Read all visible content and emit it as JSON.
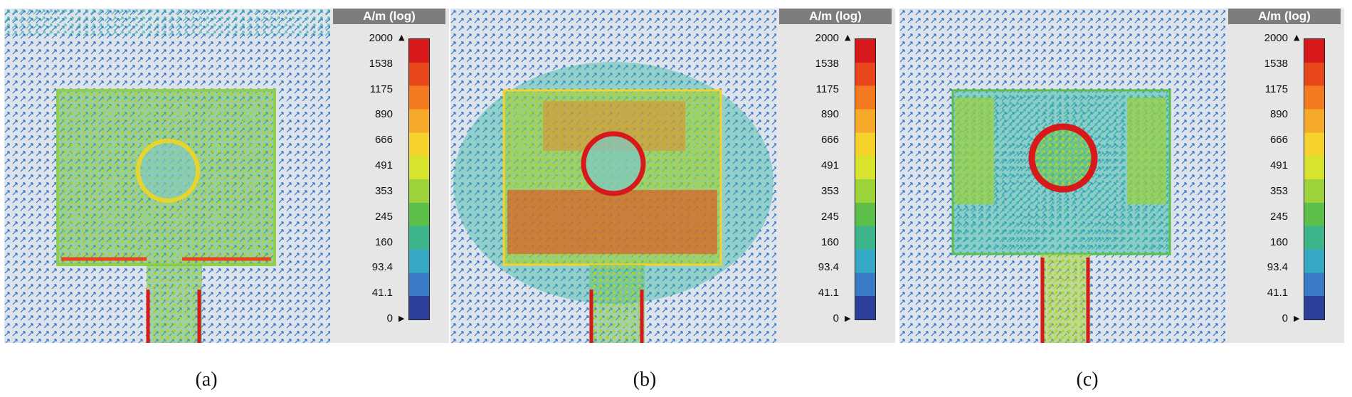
{
  "panels": [
    {
      "label": "(a)"
    },
    {
      "label": "(b)"
    },
    {
      "label": "(c)"
    }
  ],
  "legend": {
    "title": "A/m (log)",
    "ticks": [
      "2000",
      "1538",
      "1175",
      "890",
      "666",
      "491",
      "353",
      "245",
      "160",
      "93.4",
      "41.1",
      "0"
    ],
    "colors": [
      "#d7191c",
      "#e8471c",
      "#f47a1f",
      "#f7a92a",
      "#f5d32c",
      "#d8e32e",
      "#9cd23a",
      "#5cbf4a",
      "#3db58a",
      "#35a9c4",
      "#3a7bc8",
      "#2c3f99"
    ],
    "max_marker": "▲",
    "min_marker": "▶"
  }
}
